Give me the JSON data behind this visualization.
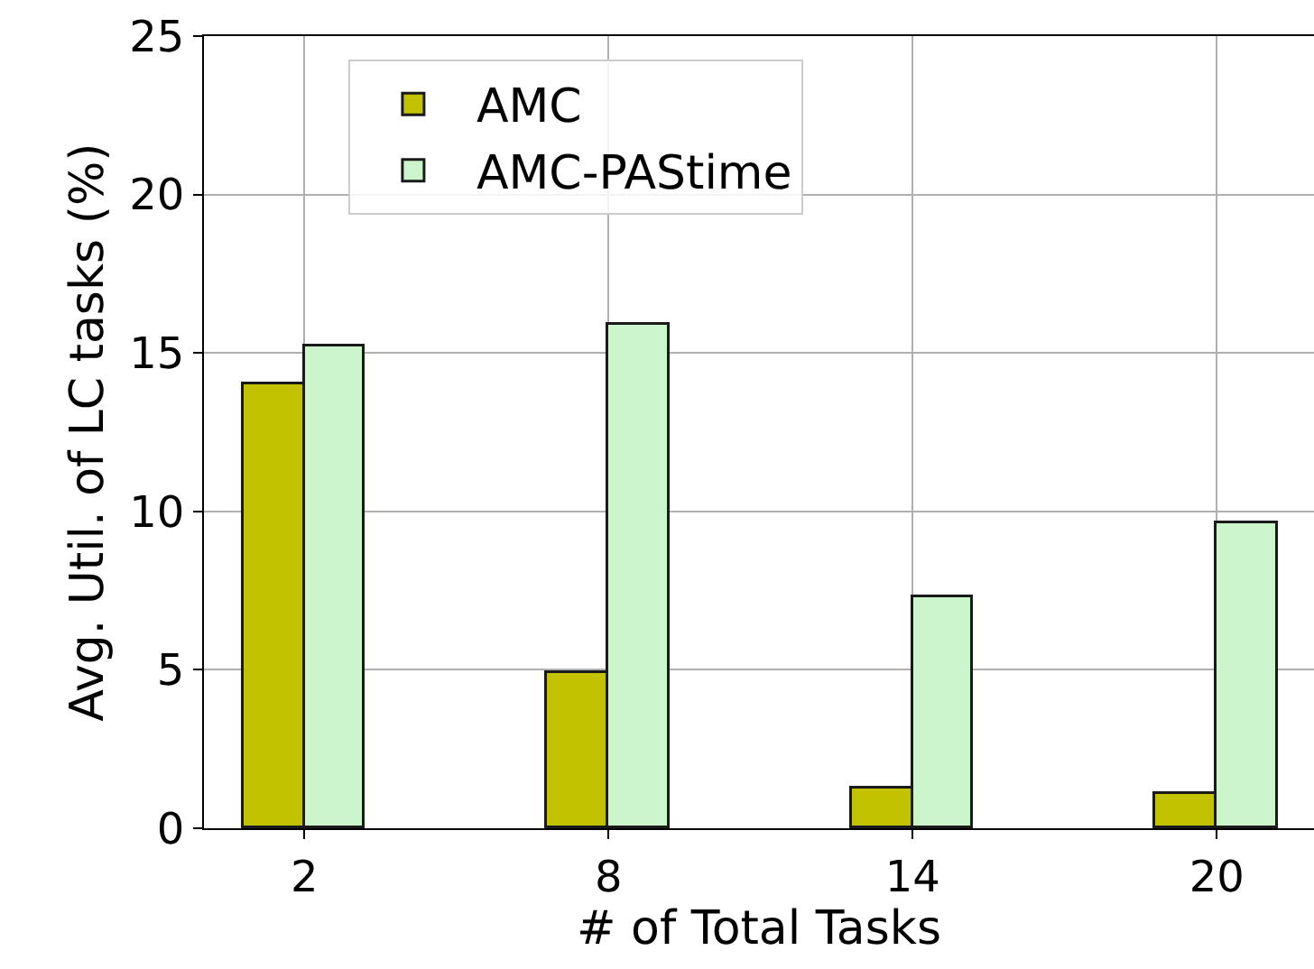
{
  "chart_data": {
    "type": "bar",
    "xlabel": "# of Total Tasks",
    "ylabel": "Avg. Util. of LC tasks (%)",
    "categories": [
      "2",
      "8",
      "14",
      "20"
    ],
    "series": [
      {
        "name": "AMC",
        "color": "#c2c200",
        "values": [
          14.0,
          4.9,
          1.25,
          1.1
        ]
      },
      {
        "name": "AMC-PAStime",
        "color": "#ccf5cc",
        "values": [
          15.2,
          15.9,
          7.3,
          9.65
        ]
      }
    ],
    "ylim": [
      0,
      25
    ],
    "yticks": [
      0,
      5,
      10,
      15,
      20,
      25
    ],
    "grid": true,
    "legend": "top left"
  }
}
